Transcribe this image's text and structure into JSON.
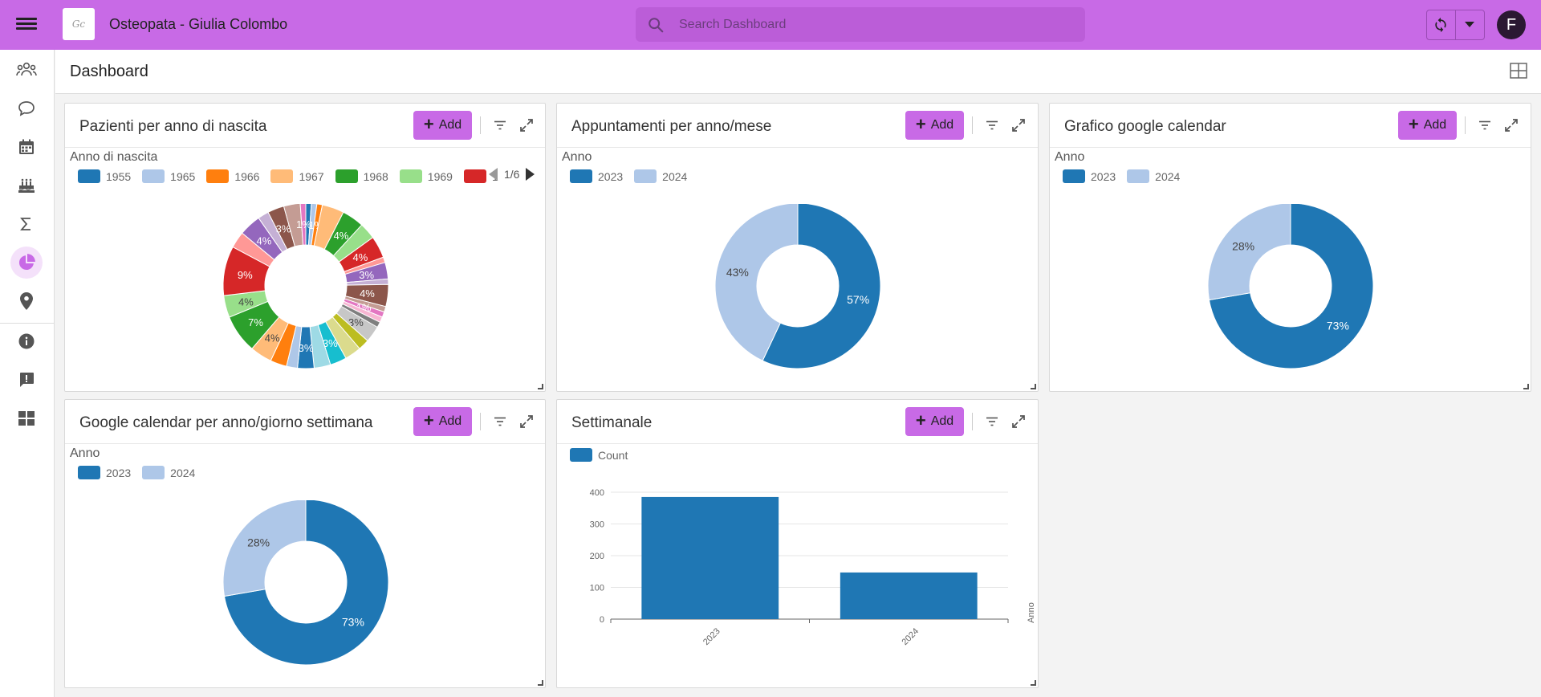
{
  "app": {
    "title": "Osteopata - Giulia Colombo",
    "logo_text": "Gc",
    "avatar_letter": "F"
  },
  "search": {
    "placeholder": "Search Dashboard"
  },
  "page": {
    "title": "Dashboard"
  },
  "sidebar": {
    "items": [
      {
        "name": "patients-icon"
      },
      {
        "name": "chat-icon"
      },
      {
        "name": "calendar-icon"
      },
      {
        "name": "birthday-cake-icon"
      },
      {
        "name": "sigma-icon"
      },
      {
        "name": "pie-chart-icon",
        "active": true
      },
      {
        "name": "location-pin-icon"
      },
      {
        "name": "info-icon"
      },
      {
        "name": "feedback-icon"
      },
      {
        "name": "dashboard-grid-icon"
      }
    ]
  },
  "colors": {
    "accent": "#c86ae6",
    "dark_blue": "#1f77b4",
    "light_blue": "#aec7e8"
  },
  "widgets": [
    {
      "title": "Pazienti per anno di nascita",
      "add_label": "Add",
      "legend_title": "Anno di nascita",
      "legend": [
        {
          "label": "1955",
          "color": "#1f77b4"
        },
        {
          "label": "1965",
          "color": "#aec7e8"
        },
        {
          "label": "1966",
          "color": "#ff7f0e"
        },
        {
          "label": "1967",
          "color": "#ffbb78"
        },
        {
          "label": "1968",
          "color": "#2ca02c"
        },
        {
          "label": "1969",
          "color": "#98df8a"
        },
        {
          "label": "1",
          "color": "#d62728"
        }
      ],
      "pager": "1/6"
    },
    {
      "title": "Appuntamenti per anno/mese",
      "add_label": "Add",
      "legend_title": "Anno",
      "legend": [
        {
          "label": "2023",
          "color": "#1f77b4"
        },
        {
          "label": "2024",
          "color": "#aec7e8"
        }
      ]
    },
    {
      "title": "Grafico google calendar",
      "add_label": "Add",
      "legend_title": "Anno",
      "legend": [
        {
          "label": "2023",
          "color": "#1f77b4"
        },
        {
          "label": "2024",
          "color": "#aec7e8"
        }
      ]
    },
    {
      "title": "Google calendar per anno/giorno settimana",
      "add_label": "Add",
      "legend_title": "Anno",
      "legend": [
        {
          "label": "2023",
          "color": "#1f77b4"
        },
        {
          "label": "2024",
          "color": "#aec7e8"
        }
      ]
    },
    {
      "title": "Settimanale",
      "add_label": "Add",
      "legend": [
        {
          "label": "Count",
          "color": "#1f77b4"
        }
      ]
    }
  ],
  "chart_data": [
    {
      "type": "pie",
      "donut": true,
      "legend_title": "Anno di nascita",
      "slices": [
        {
          "value": 1,
          "color": "#1f77b4",
          "label": ""
        },
        {
          "value": 1,
          "color": "#aec7e8",
          "label": ""
        },
        {
          "value": 1,
          "color": "#ff7f0e",
          "label": "1%"
        },
        {
          "value": 4,
          "color": "#ffbb78",
          "label": ""
        },
        {
          "value": 4,
          "color": "#2ca02c",
          "label": "4%"
        },
        {
          "value": 3,
          "color": "#98df8a",
          "label": ""
        },
        {
          "value": 4,
          "color": "#d62728",
          "label": "4%"
        },
        {
          "value": 1,
          "color": "#ff9896",
          "label": ""
        },
        {
          "value": 3,
          "color": "#9467bd",
          "label": "3%"
        },
        {
          "value": 1,
          "color": "#c5b0d5",
          "label": ""
        },
        {
          "value": 4,
          "color": "#8c564b",
          "label": "4%"
        },
        {
          "value": 1,
          "color": "#c49c94",
          "label": ""
        },
        {
          "value": 1,
          "color": "#e377c2",
          "label": "1%"
        },
        {
          "value": 1,
          "color": "#f7b6d2",
          "label": ""
        },
        {
          "value": 1,
          "color": "#7f7f7f",
          "label": ""
        },
        {
          "value": 3,
          "color": "#c7c7c7",
          "label": "3%"
        },
        {
          "value": 2,
          "color": "#bcbd22",
          "label": ""
        },
        {
          "value": 3,
          "color": "#dbdb8d",
          "label": ""
        },
        {
          "value": 3,
          "color": "#17becf",
          "label": "3%"
        },
        {
          "value": 3,
          "color": "#9edae5",
          "label": ""
        },
        {
          "value": 3,
          "color": "#1f77b4",
          "label": "3%"
        },
        {
          "value": 2,
          "color": "#aec7e8",
          "label": ""
        },
        {
          "value": 3,
          "color": "#ff7f0e",
          "label": ""
        },
        {
          "value": 4,
          "color": "#ffbb78",
          "label": "4%"
        },
        {
          "value": 7,
          "color": "#2ca02c",
          "label": "7%"
        },
        {
          "value": 4,
          "color": "#98df8a",
          "label": "4%"
        },
        {
          "value": 9,
          "color": "#d62728",
          "label": "9%"
        },
        {
          "value": 3,
          "color": "#ff9896",
          "label": ""
        },
        {
          "value": 4,
          "color": "#9467bd",
          "label": "4%"
        },
        {
          "value": 2,
          "color": "#c5b0d5",
          "label": ""
        },
        {
          "value": 3,
          "color": "#8c564b",
          "label": "3%"
        },
        {
          "value": 3,
          "color": "#c49c94",
          "label": ""
        },
        {
          "value": 1,
          "color": "#e377c2",
          "label": "1%"
        }
      ]
    },
    {
      "type": "pie",
      "donut": true,
      "legend_title": "Anno",
      "slices": [
        {
          "name": "2023",
          "value": 57,
          "color": "#1f77b4",
          "label": "57%"
        },
        {
          "name": "2024",
          "value": 43,
          "color": "#aec7e8",
          "label": "43%"
        }
      ]
    },
    {
      "type": "pie",
      "donut": true,
      "legend_title": "Anno",
      "slices": [
        {
          "name": "2023",
          "value": 73,
          "color": "#1f77b4",
          "label": "73%"
        },
        {
          "name": "2024",
          "value": 28,
          "color": "#aec7e8",
          "label": "28%"
        }
      ]
    },
    {
      "type": "pie",
      "donut": true,
      "legend_title": "Anno",
      "slices": [
        {
          "name": "2023",
          "value": 73,
          "color": "#1f77b4",
          "label": "73%"
        },
        {
          "name": "2024",
          "value": 28,
          "color": "#aec7e8",
          "label": "28%"
        }
      ]
    },
    {
      "type": "bar",
      "categories": [
        "2023",
        "2024"
      ],
      "series": [
        {
          "name": "Count",
          "values": [
            385,
            147
          ],
          "color": "#1f77b4"
        }
      ],
      "xlabel": "Anno",
      "ylabel": "",
      "ylim": [
        0,
        400
      ],
      "yticks": [
        "0",
        "100",
        "200",
        "300",
        "400"
      ],
      "grid": true
    }
  ]
}
